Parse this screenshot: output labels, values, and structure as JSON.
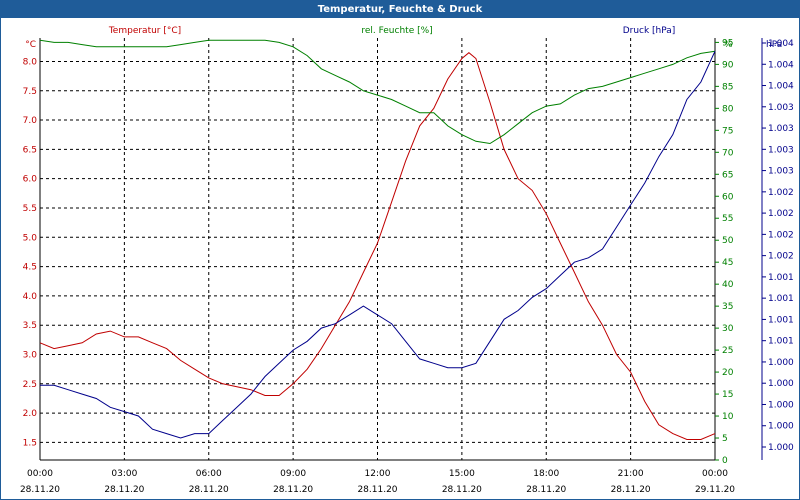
{
  "chart_data": {
    "type": "line",
    "title": "Temperatur, Feuchte & Druck",
    "x_ticks": [
      {
        "time": "00:00",
        "date": "28.11.20"
      },
      {
        "time": "03:00",
        "date": "28.11.20"
      },
      {
        "time": "06:00",
        "date": "28.11.20"
      },
      {
        "time": "09:00",
        "date": "28.11.20"
      },
      {
        "time": "12:00",
        "date": "28.11.20"
      },
      {
        "time": "15:00",
        "date": "28.11.20"
      },
      {
        "time": "18:00",
        "date": "28.11.20"
      },
      {
        "time": "21:00",
        "date": "28.11.20"
      },
      {
        "time": "00:00",
        "date": "29.11.20"
      }
    ],
    "xlim": [
      0,
      24
    ],
    "grid": true,
    "axes": {
      "left": {
        "unit": "°C",
        "min": 1.2,
        "max": 8.4,
        "ticks": [
          "1.5",
          "2.0",
          "2.5",
          "3.0",
          "3.5",
          "4.0",
          "4.5",
          "5.0",
          "5.5",
          "6.0",
          "6.5",
          "7.0",
          "7.5",
          "8.0"
        ],
        "tick_values": [
          1.5,
          2.0,
          2.5,
          3.0,
          3.5,
          4.0,
          4.5,
          5.0,
          5.5,
          6.0,
          6.5,
          7.0,
          7.5,
          8.0
        ],
        "color": "#c00000"
      },
      "middle": {
        "unit": "%",
        "min": 0,
        "max": 96,
        "ticks": [
          "0",
          "5",
          "10",
          "15",
          "20",
          "25",
          "30",
          "35",
          "40",
          "45",
          "50",
          "55",
          "60",
          "65",
          "70",
          "75",
          "80",
          "85",
          "90",
          "95"
        ],
        "tick_values": [
          0,
          5,
          10,
          15,
          20,
          25,
          30,
          35,
          40,
          45,
          50,
          55,
          60,
          65,
          70,
          75,
          80,
          85,
          90,
          95
        ],
        "color": "#008000"
      },
      "right": {
        "unit": "hPa",
        "ticks": [
          "1.000",
          "1.000",
          "1.000",
          "1.000",
          "1.000",
          "1.001",
          "1.001",
          "1.001",
          "1.001",
          "1.002",
          "1.002",
          "1.002",
          "1.002",
          "1.003",
          "1.003",
          "1.003",
          "1.003",
          "1.004",
          "1.004",
          "1.004"
        ],
        "color": "#00008b"
      }
    },
    "legend": [
      {
        "label": "Temperatur [°C]",
        "color": "#c00000"
      },
      {
        "label": "rel. Feuchte [%]",
        "color": "#008000"
      },
      {
        "label": "Druck [hPa]",
        "color": "#00008b"
      }
    ],
    "series": [
      {
        "name": "Temperatur [°C]",
        "axis": "left",
        "color": "#c00000",
        "x": [
          0,
          0.5,
          1,
          1.5,
          2,
          2.5,
          3,
          3.5,
          4,
          4.5,
          5,
          5.5,
          6,
          6.5,
          7,
          7.5,
          8,
          8.5,
          9,
          9.5,
          10,
          10.5,
          11,
          11.5,
          12,
          12.5,
          13,
          13.5,
          14,
          14.5,
          15,
          15.25,
          15.5,
          16,
          16.5,
          17,
          17.5,
          18,
          18.5,
          19,
          19.5,
          20,
          20.5,
          21,
          21.5,
          22,
          22.5,
          23,
          23.5,
          24
        ],
        "values": [
          3.2,
          3.1,
          3.15,
          3.2,
          3.35,
          3.4,
          3.3,
          3.3,
          3.2,
          3.1,
          2.9,
          2.75,
          2.6,
          2.5,
          2.45,
          2.4,
          2.3,
          2.3,
          2.5,
          2.75,
          3.1,
          3.5,
          3.9,
          4.4,
          4.9,
          5.6,
          6.3,
          6.9,
          7.2,
          7.7,
          8.05,
          8.15,
          8.05,
          7.3,
          6.5,
          6.0,
          5.8,
          5.4,
          4.9,
          4.4,
          3.9,
          3.5,
          3.0,
          2.7,
          2.2,
          1.8,
          1.65,
          1.55,
          1.55,
          1.65
        ]
      },
      {
        "name": "rel. Feuchte [%]",
        "axis": "middle",
        "color": "#008000",
        "x": [
          0,
          0.5,
          1,
          1.5,
          2,
          2.5,
          3,
          3.5,
          4,
          4.5,
          5,
          5.5,
          6,
          6.5,
          7,
          7.5,
          8,
          8.5,
          9,
          9.5,
          10,
          10.5,
          11,
          11.5,
          12,
          12.5,
          13,
          13.5,
          14,
          14.5,
          15,
          15.5,
          16,
          16.5,
          17,
          17.5,
          18,
          18.5,
          19,
          19.5,
          20,
          20.5,
          21,
          21.5,
          22,
          22.5,
          23,
          23.5,
          24
        ],
        "values": [
          95.5,
          95,
          95,
          94.5,
          94,
          94,
          94,
          94,
          94,
          94,
          94.5,
          95,
          95.5,
          95.5,
          95.5,
          95.5,
          95.5,
          95,
          94,
          92,
          89,
          87.5,
          86,
          84,
          83,
          82,
          80.5,
          79,
          79,
          76,
          74,
          72.5,
          72,
          74,
          76.5,
          79,
          80.5,
          81,
          83,
          84.5,
          85,
          86,
          87,
          88,
          89,
          90,
          91.5,
          92.5,
          93
        ]
      },
      {
        "name": "Druck [hPa]",
        "axis": "right",
        "color": "#00008b",
        "x": [
          0,
          0.5,
          1,
          1.5,
          2,
          2.5,
          3,
          3.5,
          4,
          4.5,
          5,
          5.5,
          6,
          6.5,
          7,
          7.5,
          8,
          8.5,
          9,
          9.5,
          10,
          10.5,
          11,
          11.5,
          12,
          12.5,
          13,
          13.5,
          14,
          14.5,
          15,
          15.5,
          16,
          16.5,
          17,
          17.5,
          18,
          18.5,
          19,
          19.5,
          20,
          20.5,
          21,
          21.5,
          22,
          22.5,
          23,
          23.5,
          24
        ],
        "values": [
          17,
          17,
          16,
          15,
          14,
          12,
          11,
          10,
          7,
          6,
          5,
          6,
          6,
          9,
          12,
          15,
          19,
          22,
          25,
          27,
          30,
          31,
          33,
          35,
          33,
          31,
          27,
          23,
          22,
          21,
          21,
          22,
          27,
          32,
          34,
          37,
          39,
          42,
          45,
          46,
          48,
          53,
          58,
          63,
          69,
          74,
          82,
          86,
          93
        ]
      }
    ]
  }
}
